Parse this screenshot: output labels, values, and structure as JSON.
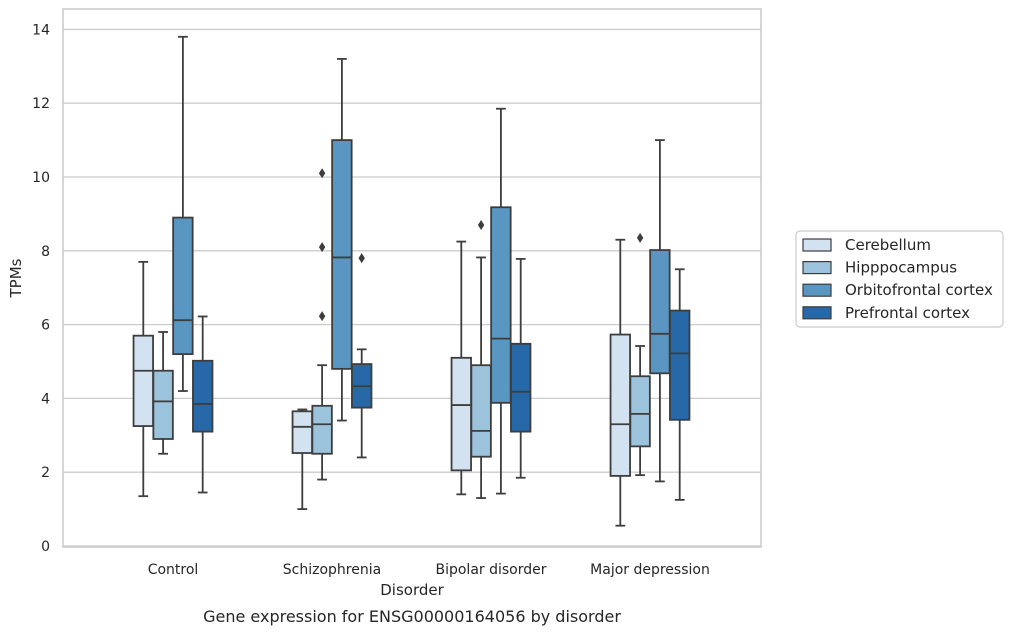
{
  "chart_data": {
    "type": "box",
    "xlabel": "Disorder",
    "ylabel": "TPMs",
    "caption": "Gene expression for ENSG00000164056 by disorder",
    "ylim": [
      0,
      14.5
    ],
    "yticks": [
      "0",
      "2",
      "4",
      "6",
      "8",
      "10",
      "12",
      "14"
    ],
    "grid": "horizontal",
    "legend_position": "right",
    "categories": [
      "Control",
      "Schizophrenia",
      "Bipolar disorder",
      "Major depression"
    ],
    "series": [
      {
        "name": "Cerebellum",
        "color": "#d3e2f1",
        "boxes": [
          {
            "whislo": 1.35,
            "q1": 3.25,
            "med": 4.75,
            "q3": 5.7,
            "whishi": 7.7,
            "fliers": []
          },
          {
            "whislo": 1.0,
            "q1": 2.52,
            "med": 3.23,
            "q3": 3.65,
            "whishi": 3.7,
            "fliers": []
          },
          {
            "whislo": 1.4,
            "q1": 2.05,
            "med": 3.82,
            "q3": 5.1,
            "whishi": 8.25,
            "fliers": []
          },
          {
            "whislo": 0.55,
            "q1": 1.9,
            "med": 3.3,
            "q3": 5.73,
            "whishi": 8.3,
            "fliers": []
          }
        ]
      },
      {
        "name": "Hipppocampus",
        "color": "#9cc3dc",
        "boxes": [
          {
            "whislo": 2.5,
            "q1": 2.9,
            "med": 3.92,
            "q3": 4.75,
            "whishi": 5.8,
            "fliers": []
          },
          {
            "whislo": 1.8,
            "q1": 2.5,
            "med": 3.3,
            "q3": 3.8,
            "whishi": 4.9,
            "fliers": [
              6.23,
              8.1,
              10.1
            ]
          },
          {
            "whislo": 1.3,
            "q1": 2.42,
            "med": 3.12,
            "q3": 4.9,
            "whishi": 7.82,
            "fliers": [
              8.7
            ]
          },
          {
            "whislo": 1.92,
            "q1": 2.7,
            "med": 3.58,
            "q3": 4.6,
            "whishi": 5.42,
            "fliers": [
              8.35
            ]
          }
        ]
      },
      {
        "name": "Orbitofrontal cortex",
        "color": "#5996c1",
        "boxes": [
          {
            "whislo": 4.2,
            "q1": 5.2,
            "med": 6.12,
            "q3": 8.9,
            "whishi": 13.8,
            "fliers": []
          },
          {
            "whislo": 3.4,
            "q1": 4.8,
            "med": 7.82,
            "q3": 11.0,
            "whishi": 13.2,
            "fliers": []
          },
          {
            "whislo": 1.42,
            "q1": 3.88,
            "med": 5.62,
            "q3": 9.18,
            "whishi": 11.85,
            "fliers": []
          },
          {
            "whislo": 1.75,
            "q1": 4.68,
            "med": 5.75,
            "q3": 8.02,
            "whishi": 11.0,
            "fliers": []
          }
        ]
      },
      {
        "name": "Prefrontal cortex",
        "color": "#2769a8",
        "boxes": [
          {
            "whislo": 1.45,
            "q1": 3.1,
            "med": 3.85,
            "q3": 5.02,
            "whishi": 6.22,
            "fliers": []
          },
          {
            "whislo": 2.4,
            "q1": 3.75,
            "med": 4.33,
            "q3": 4.93,
            "whishi": 5.33,
            "fliers": [
              7.8
            ]
          },
          {
            "whislo": 1.85,
            "q1": 3.1,
            "med": 4.18,
            "q3": 5.48,
            "whishi": 7.78,
            "fliers": []
          },
          {
            "whislo": 1.25,
            "q1": 3.42,
            "med": 5.22,
            "q3": 6.38,
            "whishi": 7.5,
            "fliers": []
          }
        ]
      }
    ]
  }
}
